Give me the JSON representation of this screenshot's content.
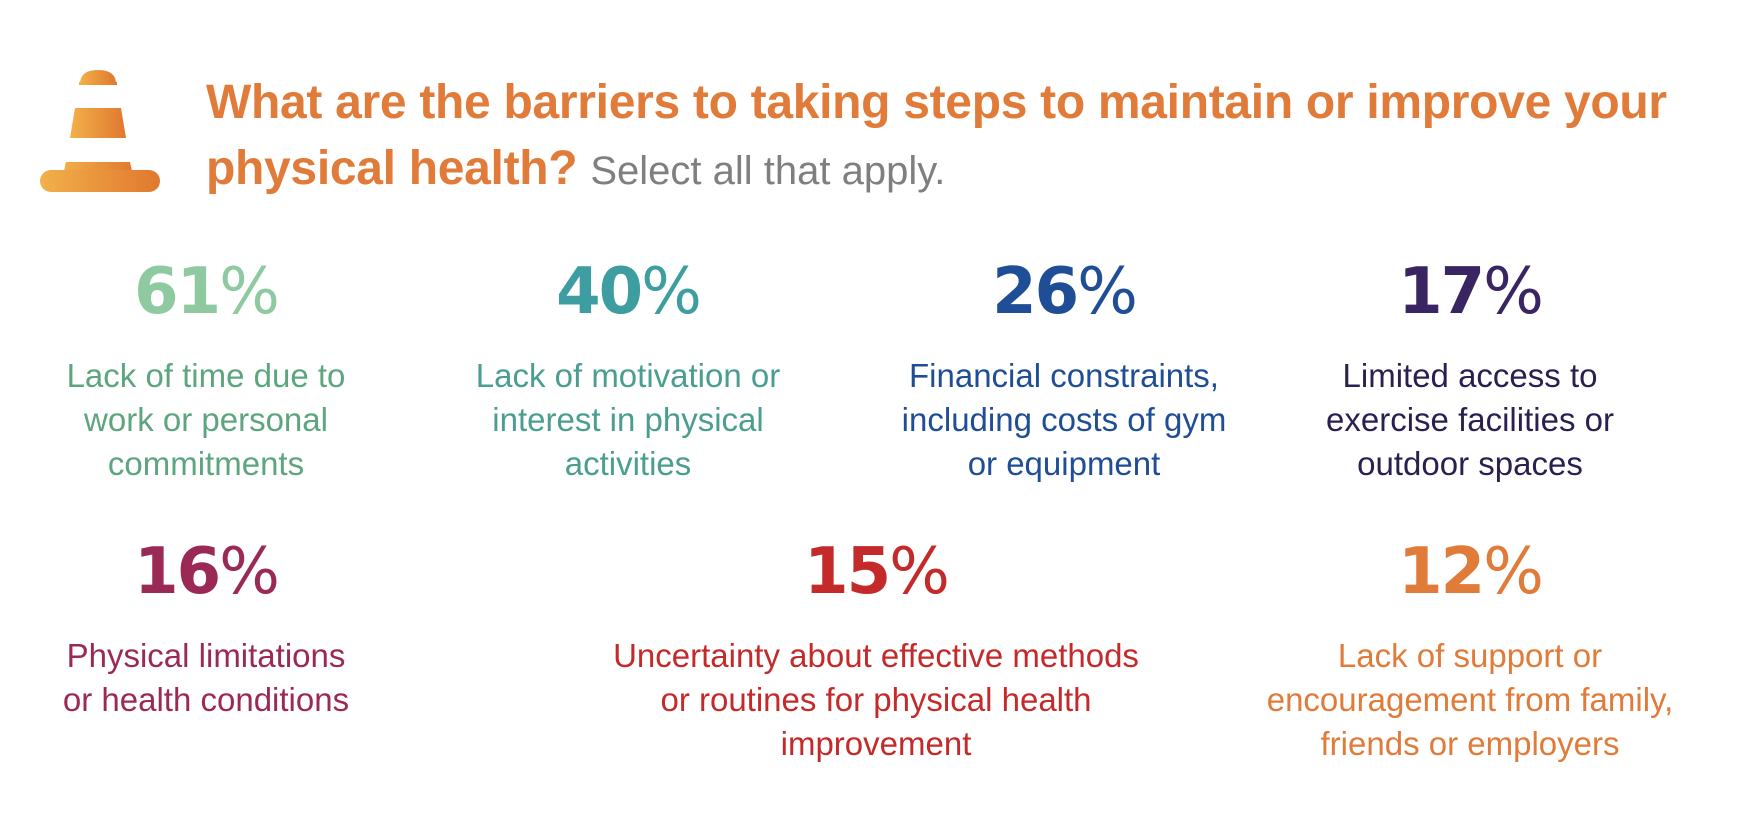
{
  "title": "What are the barriers to taking steps to maintain or improve your physical health?",
  "subtitle": "Select all that apply.",
  "icon": "traffic-cone-icon",
  "chart_data": {
    "type": "table",
    "title": "What are the barriers to taking steps to maintain or improve your physical health?",
    "subtitle": "Select all that apply.",
    "unit": "%",
    "items": [
      {
        "value": 61,
        "label": "Lack of time due to work or personal commitments",
        "lines": [
          "Lack of time due to",
          "work or personal",
          "commitments"
        ],
        "pct_color": "#8ec9a0",
        "label_color": "#5da57f"
      },
      {
        "value": 40,
        "label": "Lack of motivation or interest in physical activities",
        "lines": [
          "Lack of motivation or",
          "interest in physical",
          "activities"
        ],
        "pct_color": "#3d9da0",
        "label_color": "#4a9e8f"
      },
      {
        "value": 26,
        "label": "Financial constraints, including costs of gym or equipment",
        "lines": [
          "Financial constraints,",
          "including costs of gym",
          "or equipment"
        ],
        "pct_color": "#1f4e96",
        "label_color": "#1f4e96"
      },
      {
        "value": 17,
        "label": "Limited access to exercise facilities or outdoor spaces",
        "lines": [
          "Limited access to",
          "exercise facilities or",
          "outdoor spaces"
        ],
        "pct_color": "#3a2563",
        "label_color": "#2a1f4f"
      },
      {
        "value": 16,
        "label": "Physical limitations or health conditions",
        "lines": [
          "Physical limitations",
          "or health conditions"
        ],
        "pct_color": "#9a2a55",
        "label_color": "#9a2a55"
      },
      {
        "value": 15,
        "label": "Uncertainty about effective methods or routines for physical health improvement",
        "lines": [
          "Uncertainty about effective methods",
          "or routines for physical health",
          "improvement"
        ],
        "pct_color": "#c42a2a",
        "label_color": "#c42a2a"
      },
      {
        "value": 12,
        "label": "Lack of support or encouragement from family, friends or employers",
        "lines": [
          "Lack of support or",
          "encouragement from family,",
          "friends or employers"
        ],
        "pct_color": "#e07b3a",
        "label_color": "#e07b3a"
      }
    ]
  }
}
